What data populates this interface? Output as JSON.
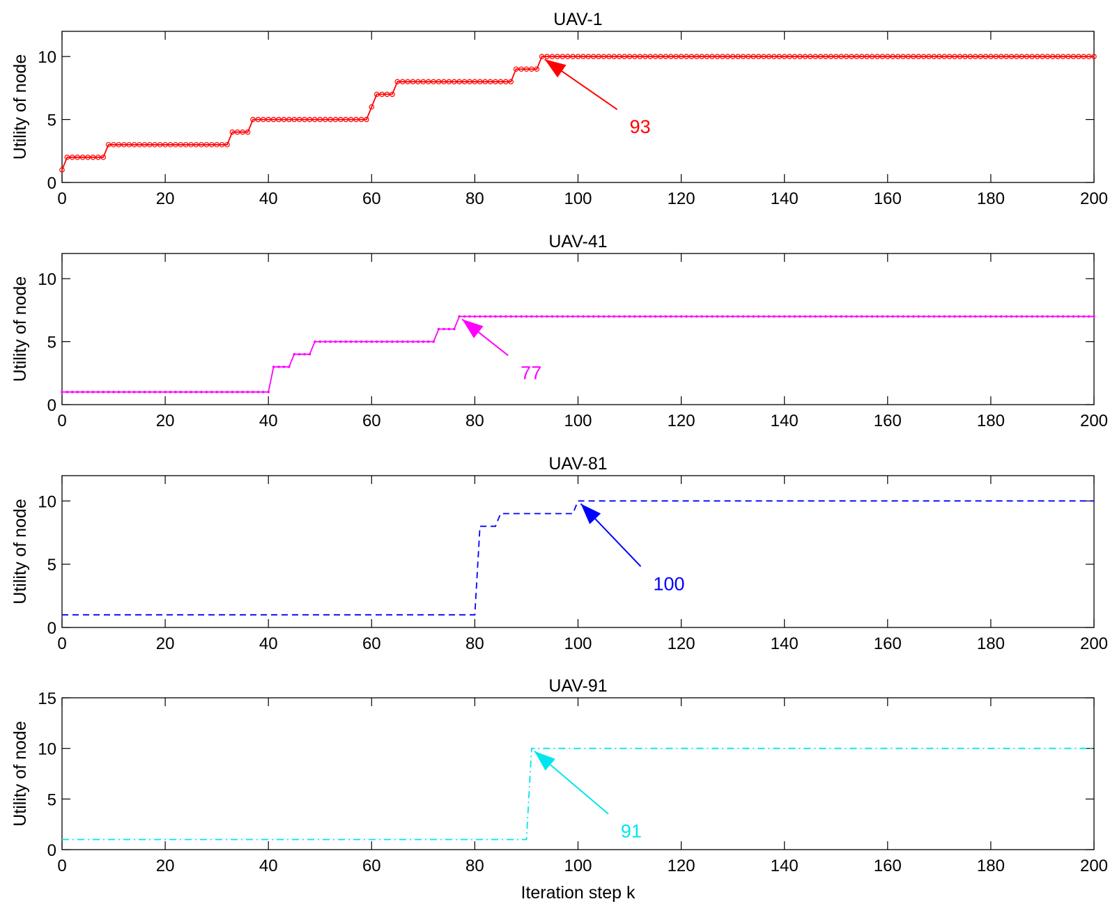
{
  "chart_data": [
    {
      "type": "line",
      "title": "UAV-1",
      "ylabel": "Utility of node",
      "xlim": [
        0,
        200
      ],
      "ylim": [
        0,
        12
      ],
      "xticks": [
        "0",
        "20",
        "40",
        "60",
        "80",
        "100",
        "120",
        "140",
        "160",
        "180",
        "200"
      ],
      "xtick_values": [
        0,
        20,
        40,
        60,
        80,
        100,
        120,
        140,
        160,
        180,
        200
      ],
      "yticks": [
        "0",
        "5",
        "10"
      ],
      "ytick_values": [
        0,
        5,
        10
      ],
      "color": "#ff0000",
      "line_style": "solid",
      "markers": "circle",
      "series": [
        {
          "x": [
            0,
            1,
            8,
            9,
            32,
            33,
            36,
            37,
            59,
            60,
            61,
            64,
            65,
            87,
            88,
            92,
            93,
            200
          ],
          "y": [
            1,
            2,
            2,
            3,
            3,
            4,
            4,
            5,
            5,
            6,
            7,
            7,
            8,
            8,
            9,
            9,
            10,
            10
          ]
        }
      ],
      "annotation": {
        "text": "93",
        "x": 93,
        "y": 10
      }
    },
    {
      "type": "line",
      "title": "UAV-41",
      "ylabel": "Utility of node",
      "xlim": [
        0,
        200
      ],
      "ylim": [
        0,
        12
      ],
      "xticks": [
        "0",
        "20",
        "40",
        "60",
        "80",
        "100",
        "120",
        "140",
        "160",
        "180",
        "200"
      ],
      "xtick_values": [
        0,
        20,
        40,
        60,
        80,
        100,
        120,
        140,
        160,
        180,
        200
      ],
      "yticks": [
        "0",
        "5",
        "10"
      ],
      "ytick_values": [
        0,
        5,
        10
      ],
      "color": "#ff00ff",
      "line_style": "solid",
      "markers": "dot",
      "series": [
        {
          "x": [
            0,
            40,
            41,
            44,
            45,
            48,
            49,
            72,
            73,
            76,
            77,
            200
          ],
          "y": [
            1,
            1,
            3,
            3,
            4,
            4,
            5,
            5,
            6,
            6,
            7,
            7
          ]
        }
      ],
      "annotation": {
        "text": "77",
        "x": 77,
        "y": 7
      }
    },
    {
      "type": "line",
      "title": "UAV-81",
      "ylabel": "Utility of node",
      "xlim": [
        0,
        200
      ],
      "ylim": [
        0,
        12
      ],
      "xticks": [
        "0",
        "20",
        "40",
        "60",
        "80",
        "100",
        "120",
        "140",
        "160",
        "180",
        "200"
      ],
      "xtick_values": [
        0,
        20,
        40,
        60,
        80,
        100,
        120,
        140,
        160,
        180,
        200
      ],
      "yticks": [
        "0",
        "5",
        "10"
      ],
      "ytick_values": [
        0,
        5,
        10
      ],
      "color": "#0000ff",
      "line_style": "dashed",
      "markers": "none",
      "series": [
        {
          "x": [
            0,
            80,
            81,
            84,
            85,
            99,
            100,
            200
          ],
          "y": [
            1,
            1,
            8,
            8,
            9,
            9,
            10,
            10
          ]
        }
      ],
      "annotation": {
        "text": "100",
        "x": 100,
        "y": 10
      }
    },
    {
      "type": "line",
      "title": "UAV-91",
      "ylabel": "Utility of node",
      "xlabel": "Iteration step k",
      "xlim": [
        0,
        200
      ],
      "ylim": [
        0,
        15
      ],
      "xticks": [
        "0",
        "20",
        "40",
        "60",
        "80",
        "100",
        "120",
        "140",
        "160",
        "180",
        "200"
      ],
      "xtick_values": [
        0,
        20,
        40,
        60,
        80,
        100,
        120,
        140,
        160,
        180,
        200
      ],
      "yticks": [
        "0",
        "5",
        "10",
        "15"
      ],
      "ytick_values": [
        0,
        5,
        10,
        15
      ],
      "color": "#00e5ee",
      "line_style": "dashdot",
      "markers": "none",
      "series": [
        {
          "x": [
            0,
            90,
            91,
            200
          ],
          "y": [
            1,
            1,
            10,
            10
          ]
        }
      ],
      "annotation": {
        "text": "91",
        "x": 91,
        "y": 10
      }
    }
  ]
}
